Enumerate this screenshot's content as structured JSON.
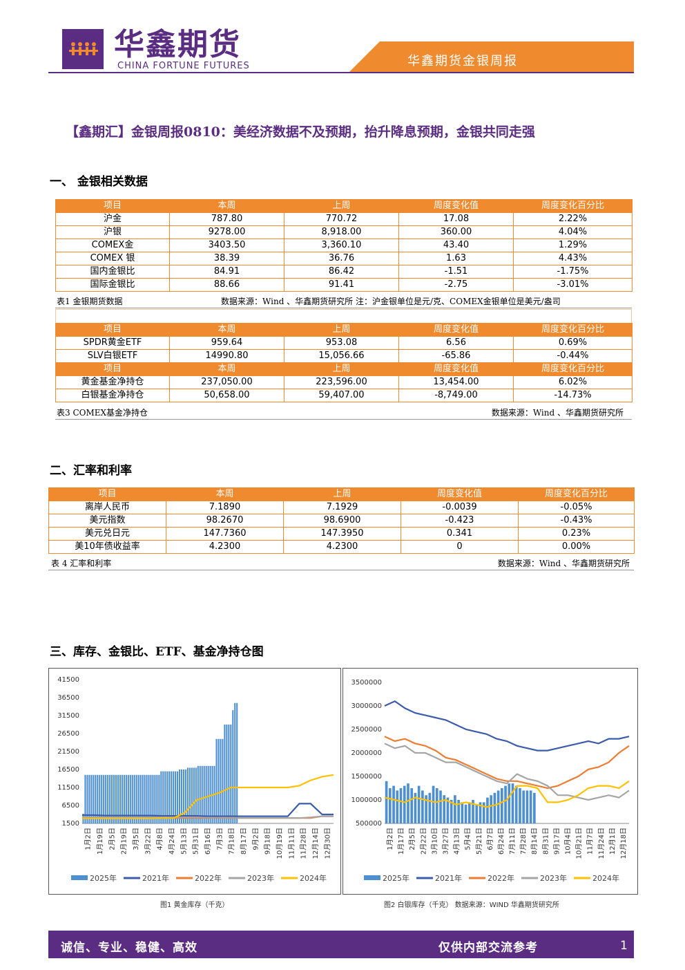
{
  "header": {
    "brand_cn": "华鑫期货",
    "brand_en": "CHINA FORTUNE FUTURES",
    "banner": "华鑫期货金银周报",
    "colors": {
      "purple": "#5b2d82",
      "orange": "#f08a2e"
    }
  },
  "title": "【鑫期汇】金银周报0810：美经济数据不及预期，抬升降息预期，金银共同走强",
  "sections": {
    "s1": "一、    金银相关数据",
    "s2": "二、汇率和利率",
    "s3": "三、库存、金银比、ETF、基金净持仓图"
  },
  "table1": {
    "headers": [
      "项目",
      "本周",
      "上周",
      "周度变化值",
      "周度变化百分比"
    ],
    "rows": [
      [
        "沪金",
        "787.80",
        "770.72",
        "17.08",
        "2.22%"
      ],
      [
        "沪银",
        "9278.00",
        "8,918.00",
        "360.00",
        "4.04%"
      ],
      [
        "COMEX金",
        "3403.50",
        "3,360.10",
        "43.40",
        "1.29%"
      ],
      [
        "COMEX 银",
        "38.39",
        "36.76",
        "1.63",
        "4.43%"
      ],
      [
        "国内金银比",
        "84.91",
        "86.42",
        "-1.51",
        "-1.75%"
      ],
      [
        "国际金银比",
        "88.66",
        "91.41",
        "-2.75",
        "-3.01%"
      ]
    ],
    "caption_left": "表1  金银期货数据",
    "caption_right": "数据来源：Wind 、华鑫期货研究所  注：沪金银单位是元/克、COMEX金银单位是美元/盎司"
  },
  "table2": {
    "headers": [
      "项目",
      "本周",
      "上周",
      "周度变化值",
      "周度变化百分比"
    ],
    "rows": [
      [
        "SPDR黄金ETF",
        "959.64",
        "953.08",
        "6.56",
        "0.69%"
      ],
      [
        "SLV白银ETF",
        "14990.80",
        "15,056.66",
        "-65.86",
        "-0.44%"
      ]
    ],
    "headers2": [
      "项目",
      "本周",
      "上周",
      "周度变化值",
      "周度变化百分比"
    ],
    "rows2": [
      [
        "黄金基金净持仓",
        "237,050.00",
        "223,596.00",
        "13,454.00",
        "6.02%"
      ],
      [
        "白银基金净持仓",
        "50,658.00",
        "59,407.00",
        "-8,749.00",
        "-14.73%"
      ]
    ],
    "caption_left": "表3  COMEX基金净持仓",
    "caption_right": "数据来源：Wind 、华鑫期货研究所"
  },
  "table3": {
    "headers": [
      "项目",
      "本周",
      "上周",
      "周度变化值",
      "周度变化百分比"
    ],
    "rows": [
      [
        "离岸人民币",
        "7.1890",
        "7.1929",
        "-0.0039",
        "-0.05%"
      ],
      [
        "美元指数",
        "98.2670",
        "98.6900",
        "-0.423",
        "-0.43%"
      ],
      [
        "美元兑日元",
        "147.7360",
        "147.3950",
        "0.341",
        "0.23%"
      ],
      [
        "美10年债收益率",
        "4.2300",
        "4.2300",
        "0",
        "0.00%"
      ]
    ],
    "caption_left": "表 4 汇率和利率",
    "caption_right": "数据来源：Wind 、华鑫期货研究所"
  },
  "chart_data": [
    {
      "type": "line",
      "caption": "图1 黄金库存（千克）",
      "yticks": [
        "41500",
        "36500",
        "31500",
        "26500",
        "21500",
        "16500",
        "11500",
        "6500",
        "1500"
      ],
      "ylim": [
        1500,
        41500
      ],
      "xticks": [
        "1月2日",
        "1月19日",
        "2月5日",
        "2月19日",
        "3月5日",
        "3月22日",
        "4月8日",
        "4月24日",
        "5月13日",
        "5月31日",
        "6月16日",
        "7月3日",
        "7月18日",
        "8月17日",
        "9月2日",
        "9月18日",
        "10月19日",
        "11月11日",
        "11月28日",
        "12月14日",
        "12月30日"
      ],
      "legend": [
        "2025年",
        "2021年",
        "2022年",
        "2023年",
        "2024年"
      ],
      "colors": [
        "#4e8fcf",
        "#3b5bab",
        "#ed7d31",
        "#a5a5a5",
        "#ffc000"
      ],
      "series": [
        {
          "name": "2025年",
          "kind": "bar",
          "values": [
            4200,
            15000,
            15000,
            15000,
            15000,
            15000,
            15000,
            15000,
            15000,
            15000,
            15000,
            15000,
            15000,
            15000,
            15000,
            15000,
            15000,
            15000,
            15000,
            15000,
            15000,
            15000,
            15000,
            15000,
            15000,
            15000,
            15000,
            15000,
            15000,
            15000,
            15000,
            15000,
            15000,
            15000,
            15000,
            15000,
            15000,
            15000,
            16000,
            16000,
            16000,
            16000,
            16000,
            16000,
            16000,
            16000,
            16000,
            16500,
            16500,
            16500,
            16500,
            17000,
            17000,
            17000,
            17000,
            17000,
            17500,
            17500,
            17500,
            17500,
            17500,
            17500,
            17500,
            17500,
            17500,
            25000,
            25000,
            25000,
            25000,
            29000,
            29000,
            29000,
            29000,
            33000,
            35000,
            35000
          ]
        },
        {
          "name": "2021年",
          "kind": "line",
          "values": [
            3800,
            3800,
            3700,
            3700,
            3700,
            3700,
            3700,
            3600,
            3600,
            3600,
            3600,
            3500,
            3500,
            3500,
            3500,
            3500,
            3500,
            3500,
            3500,
            7000,
            7000,
            4000,
            4000
          ]
        },
        {
          "name": "2022年",
          "kind": "line",
          "values": [
            3000,
            3000,
            3000,
            3000,
            3000,
            3000,
            3000,
            3000,
            3000,
            3000,
            3000,
            3000,
            3000,
            3000,
            3000,
            3000,
            3000,
            3000,
            3000,
            3000,
            3000,
            3500,
            3500
          ]
        },
        {
          "name": "2023年",
          "kind": "line",
          "values": [
            3200,
            3200,
            3200,
            3200,
            3200,
            3200,
            3200,
            3200,
            3200,
            3200,
            3200,
            3100,
            3100,
            3100,
            3000,
            3000,
            3000,
            3000,
            3000,
            3000,
            3200,
            3500,
            3500
          ]
        },
        {
          "name": "2024年",
          "kind": "line",
          "values": [
            2900,
            2900,
            2900,
            2900,
            2900,
            2900,
            2900,
            3000,
            3000,
            4500,
            8000,
            9000,
            10000,
            11500,
            11500,
            11500,
            11500,
            11500,
            11500,
            12000,
            13500,
            14500,
            15000
          ]
        }
      ]
    },
    {
      "type": "line",
      "caption": "图2 白银库存（千克）  数据来源：WIND 华鑫期货研究所",
      "yticks": [
        "3500000",
        "3000000",
        "2500000",
        "2000000",
        "1500000",
        "1000000",
        "500000"
      ],
      "ylim": [
        500000,
        3500000
      ],
      "xticks": [
        "1月2日",
        "1月17日",
        "2月5日",
        "2月22日",
        "3月10日",
        "3月27日",
        "4月13日",
        "5月4日",
        "5月21日",
        "6月7日",
        "6月24日",
        "7月11日",
        "7月28日",
        "8月14日",
        "8月31日",
        "9月17日",
        "10月4日",
        "10月21日",
        "11月7日",
        "11月24日",
        "12月1日",
        "12月18日"
      ],
      "legend": [
        "2025年",
        "2021年",
        "2022年",
        "2023年",
        "2024年"
      ],
      "colors": [
        "#4e8fcf",
        "#3b5bab",
        "#ed7d31",
        "#a5a5a5",
        "#ffc000"
      ],
      "series": [
        {
          "name": "2025年",
          "kind": "bar",
          "values": [
            1400000,
            1250000,
            1300000,
            1200000,
            1250000,
            1300000,
            1350000,
            1250000,
            1150000,
            1300000,
            1200000,
            1100000,
            1150000,
            1300000,
            1250000,
            1200000,
            1100000,
            1050000,
            1000000,
            1100000,
            1000000,
            950000,
            900000,
            950000,
            1000000,
            900000,
            950000,
            950000,
            1050000,
            1100000,
            1150000,
            1200000,
            1250000,
            1300000,
            1350000,
            1350000,
            1300000,
            1250000,
            1200000,
            1200000,
            1200000,
            1150000
          ]
        },
        {
          "name": "2021年",
          "kind": "line",
          "values": [
            3000000,
            3100000,
            2950000,
            2850000,
            2800000,
            2750000,
            2700000,
            2600000,
            2500000,
            2450000,
            2400000,
            2300000,
            2250000,
            2150000,
            2100000,
            2050000,
            2050000,
            2100000,
            2150000,
            2200000,
            2250000,
            2200000,
            2300000,
            2300000,
            2350000
          ]
        },
        {
          "name": "2022年",
          "kind": "line",
          "values": [
            2350000,
            2250000,
            2300000,
            2200000,
            2150000,
            2050000,
            1900000,
            1850000,
            1750000,
            1650000,
            1550000,
            1450000,
            1400000,
            1400000,
            1350000,
            1300000,
            1250000,
            1300000,
            1400000,
            1500000,
            1650000,
            1700000,
            1800000,
            2000000,
            2150000
          ]
        },
        {
          "name": "2023年",
          "kind": "line",
          "values": [
            2200000,
            2100000,
            2150000,
            2000000,
            2000000,
            1900000,
            1800000,
            1800000,
            1700000,
            1600000,
            1500000,
            1400000,
            1350000,
            1550000,
            1450000,
            1400000,
            1300000,
            1100000,
            1100000,
            1050000,
            1000000,
            1050000,
            1100000,
            1050000,
            1200000
          ]
        },
        {
          "name": "2024年",
          "kind": "line",
          "values": [
            1050000,
            1000000,
            950000,
            1050000,
            1000000,
            950000,
            1000000,
            900000,
            950000,
            900000,
            850000,
            900000,
            1000000,
            1300000,
            1300000,
            1250000,
            950000,
            950000,
            1000000,
            1100000,
            1250000,
            1300000,
            1300000,
            1250000,
            1400000
          ]
        }
      ]
    }
  ],
  "footer": {
    "left": "诚信、专业、稳健、高效",
    "right": "仅供内部交流参考",
    "page": "1"
  }
}
